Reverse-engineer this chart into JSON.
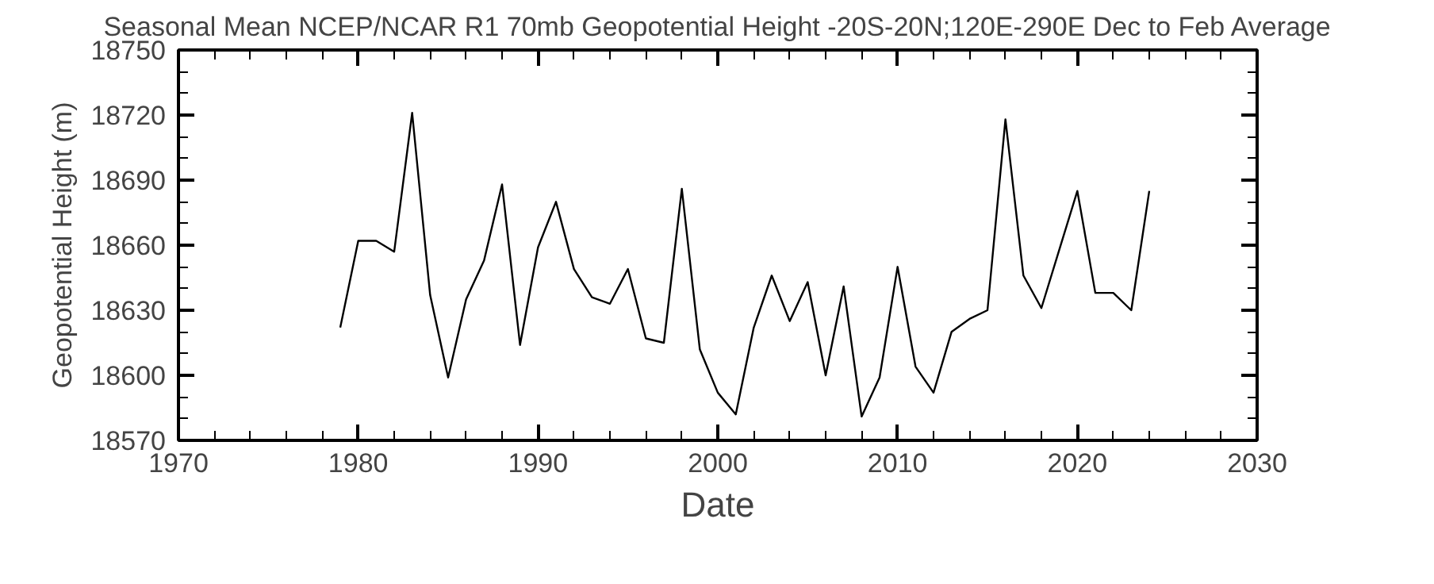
{
  "chart_data": {
    "type": "line",
    "title": "Seasonal Mean NCEP/NCAR R1 70mb Geopotential Height -20S-20N;120E-290E Dec to Feb Average",
    "xlabel": "Date",
    "ylabel": "Geopotential Height (m)",
    "x": [
      1979,
      1980,
      1981,
      1982,
      1983,
      1984,
      1985,
      1986,
      1987,
      1988,
      1989,
      1990,
      1991,
      1992,
      1993,
      1994,
      1995,
      1996,
      1997,
      1998,
      1999,
      2000,
      2001,
      2002,
      2003,
      2004,
      2005,
      2006,
      2007,
      2008,
      2009,
      2010,
      2011,
      2012,
      2013,
      2014,
      2015,
      2016,
      2017,
      2018,
      2019,
      2020,
      2021,
      2022,
      2023,
      2024
    ],
    "series": [
      {
        "color": "#000000",
        "values": [
          18622,
          18662,
          18662,
          18657,
          18721,
          18637,
          18599,
          18635,
          18653,
          18688,
          18614,
          18659,
          18680,
          18649,
          18636,
          18633,
          18649,
          18617,
          18615,
          18686,
          18612,
          18592,
          18582,
          18622,
          18646,
          18625,
          18643,
          18600,
          18641,
          18581,
          18599,
          18650,
          18604,
          18592,
          18620,
          18626,
          18630,
          18718,
          18646,
          18631,
          18658,
          18685,
          18638,
          18638,
          18630,
          18685
        ]
      }
    ],
    "xlim": [
      1970,
      2030
    ],
    "xticks": [
      1970,
      1980,
      1990,
      2000,
      2010,
      2020,
      2030
    ],
    "ylim": [
      18570,
      18750
    ],
    "yticks": [
      18570,
      18600,
      18630,
      18660,
      18690,
      18720,
      18750
    ],
    "grid": false,
    "marker": "none",
    "line_style": "solid"
  }
}
